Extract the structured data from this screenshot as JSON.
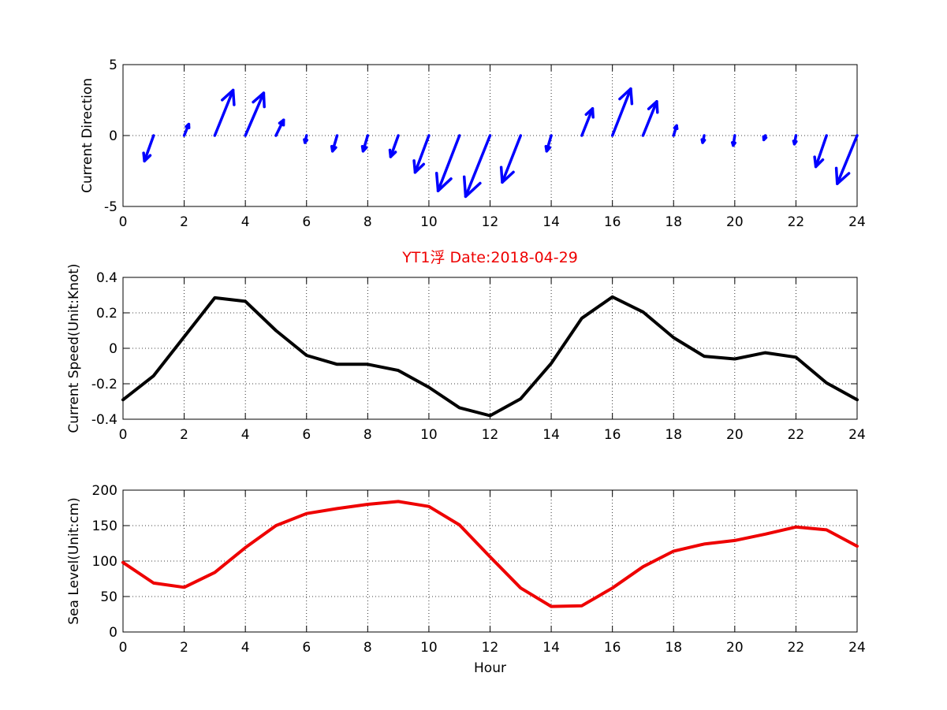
{
  "chart_data": [
    {
      "type": "quiver",
      "ylabel": "Current Direction",
      "ylim": [
        -5,
        5
      ],
      "yticks": [
        -5,
        0,
        5
      ],
      "xlim": [
        0,
        24
      ],
      "xticks": [
        0,
        2,
        4,
        6,
        8,
        10,
        12,
        14,
        16,
        18,
        20,
        22,
        24
      ],
      "grid": true,
      "color": "#0000ff",
      "x": [
        1,
        2,
        3,
        4,
        5,
        6,
        7,
        8,
        9,
        10,
        11,
        12,
        13,
        14,
        15,
        16,
        17,
        18,
        19,
        20,
        21,
        22,
        23,
        24
      ],
      "u": [
        -0.3,
        0.15,
        0.6,
        0.6,
        0.25,
        -0.05,
        -0.15,
        -0.15,
        -0.25,
        -0.45,
        -0.7,
        -0.8,
        -0.6,
        -0.15,
        0.35,
        0.6,
        0.45,
        0.1,
        -0.05,
        -0.05,
        -0.05,
        -0.05,
        -0.35,
        -0.65
      ],
      "v": [
        -1.8,
        0.8,
        3.2,
        3.0,
        1.1,
        -0.5,
        -1.1,
        -1.1,
        -1.5,
        -2.6,
        -3.9,
        -4.3,
        -3.3,
        -1.1,
        1.9,
        3.3,
        2.4,
        0.7,
        -0.5,
        -0.7,
        -0.3,
        -0.6,
        -2.2,
        -3.4
      ]
    },
    {
      "type": "line",
      "title": "YT1浮    Date:2018-04-29",
      "ylabel": "Current Speed(Unit:Knot)",
      "ylim": [
        -0.4,
        0.4
      ],
      "yticks": [
        -0.4,
        -0.2,
        0,
        0.2,
        0.4
      ],
      "xlim": [
        0,
        24
      ],
      "xticks": [
        0,
        2,
        4,
        6,
        8,
        10,
        12,
        14,
        16,
        18,
        20,
        22,
        24
      ],
      "grid": true,
      "color": "#000000",
      "x": [
        0,
        1,
        2,
        3,
        4,
        5,
        6,
        7,
        8,
        9,
        10,
        11,
        12,
        13,
        14,
        15,
        16,
        17,
        18,
        19,
        20,
        21,
        22,
        23,
        24
      ],
      "y": [
        -0.29,
        -0.155,
        0.065,
        0.285,
        0.265,
        0.1,
        -0.04,
        -0.09,
        -0.09,
        -0.125,
        -0.22,
        -0.335,
        -0.38,
        -0.285,
        -0.085,
        0.17,
        0.29,
        0.205,
        0.06,
        -0.045,
        -0.06,
        -0.025,
        -0.05,
        -0.195,
        -0.29
      ]
    },
    {
      "type": "line",
      "xlabel": "Hour",
      "ylabel": "Sea Level(Unit:cm)",
      "ylim": [
        0,
        200
      ],
      "yticks": [
        0,
        50,
        100,
        150,
        200
      ],
      "xlim": [
        0,
        24
      ],
      "xticks": [
        0,
        2,
        4,
        6,
        8,
        10,
        12,
        14,
        16,
        18,
        20,
        22,
        24
      ],
      "grid": true,
      "color": "#ee0000",
      "x": [
        0,
        1,
        2,
        3,
        4,
        5,
        6,
        7,
        8,
        9,
        10,
        11,
        12,
        13,
        14,
        15,
        16,
        17,
        18,
        19,
        20,
        21,
        22,
        23,
        24
      ],
      "y": [
        98,
        69,
        63,
        84,
        119,
        150,
        167,
        174,
        180,
        184,
        177,
        151,
        106,
        62,
        36,
        37,
        62,
        92,
        114,
        124,
        129,
        138,
        148,
        144,
        121
      ]
    }
  ]
}
